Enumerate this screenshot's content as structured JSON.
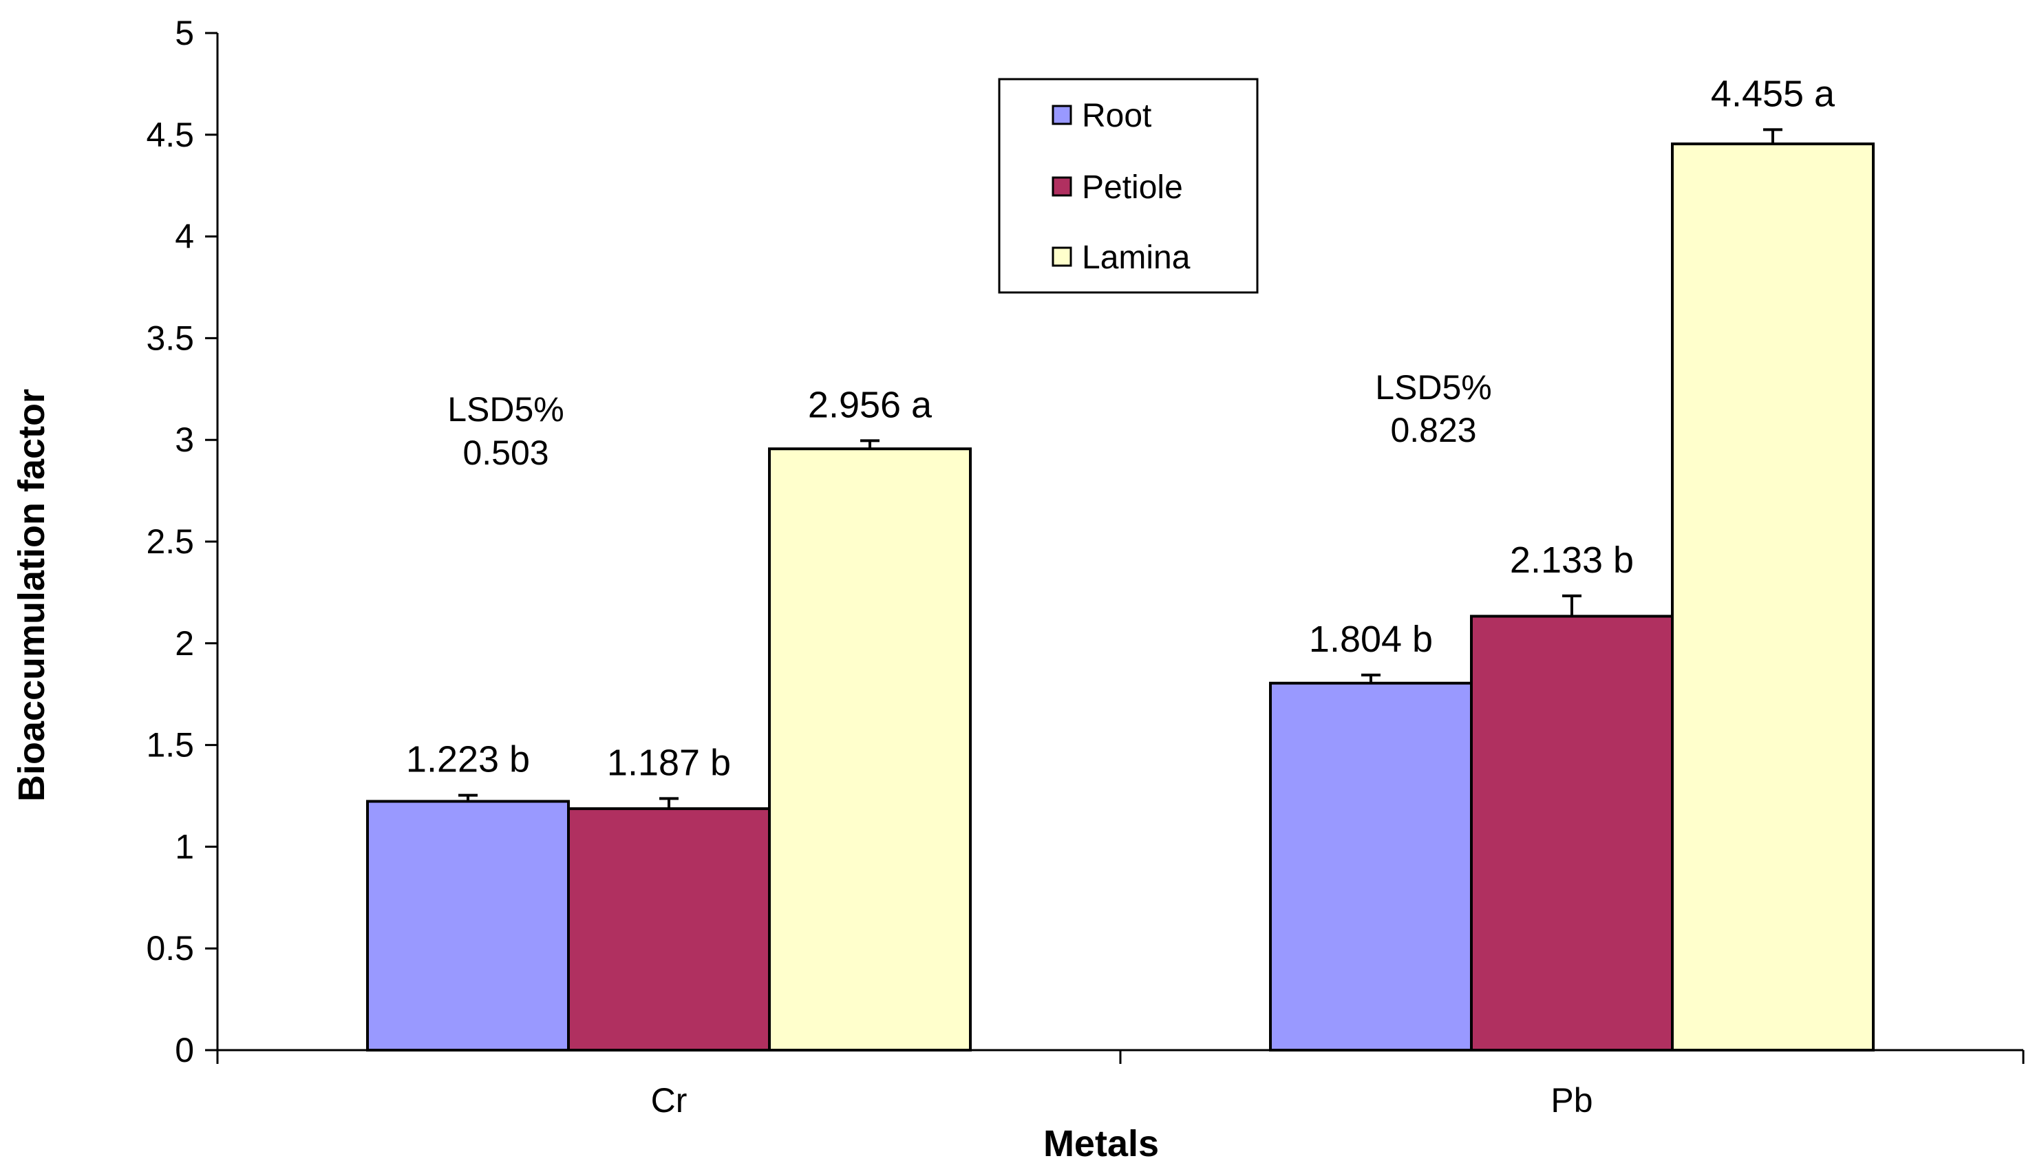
{
  "chart_data": {
    "type": "bar",
    "title": "",
    "xlabel": "Metals",
    "ylabel": "Bioaccumulation factor",
    "ylim": [
      0,
      5
    ],
    "ytick_step": 0.5,
    "yticks": [
      "0",
      "0.5",
      "1",
      "1.5",
      "2",
      "2.5",
      "3",
      "3.5",
      "4",
      "4.5",
      "5"
    ],
    "categories": [
      "Cr",
      "Pb"
    ],
    "series": [
      {
        "name": "Root",
        "color": "#9999ff",
        "values": [
          1.223,
          1.804
        ],
        "errors": [
          0.03,
          0.04
        ],
        "labels": [
          "1.223 b",
          "1.804 b"
        ]
      },
      {
        "name": "Petiole",
        "color": "#b03060",
        "values": [
          1.187,
          2.133
        ],
        "errors": [
          0.05,
          0.1
        ],
        "labels": [
          "1.187 b",
          "2.133 b"
        ]
      },
      {
        "name": "Lamina",
        "color": "#ffffcc",
        "values": [
          2.956,
          4.455
        ],
        "errors": [
          0.04,
          0.07
        ],
        "labels": [
          "2.956 a",
          "4.455 a"
        ]
      }
    ],
    "annotations": [
      {
        "line1": "LSD5%",
        "line2": "0.503",
        "category": "Cr"
      },
      {
        "line1": "LSD5%",
        "line2": "0.823",
        "category": "Pb"
      }
    ],
    "legend_position": "top-center"
  }
}
